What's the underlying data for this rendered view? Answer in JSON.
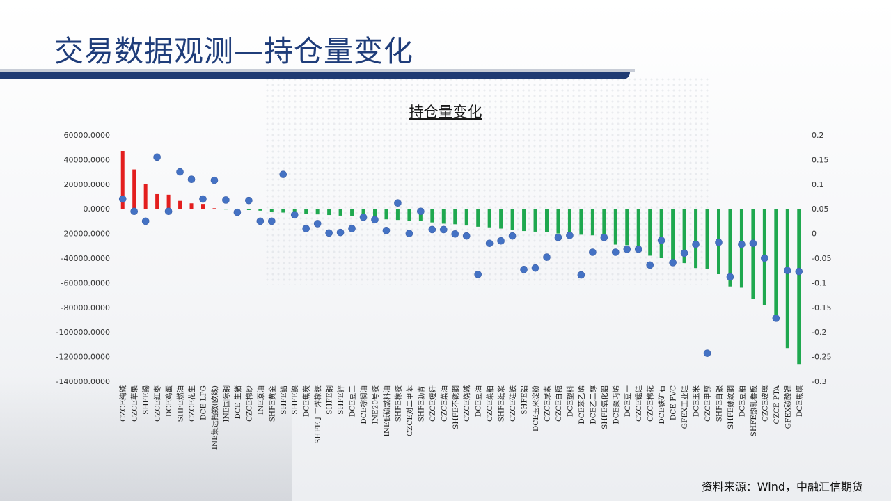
{
  "slide": {
    "title": "交易数据观测—持仓量变化",
    "source": "资料来源：Wind，中融汇信期货"
  },
  "colors": {
    "title": "#1f3d7a",
    "bar_positive": "#e31e1e",
    "bar_negative": "#1fa84f",
    "dot": "#4472c4"
  },
  "chart_data": {
    "type": "bar",
    "title": "持仓量变化",
    "left_axis": {
      "min": -140000,
      "max": 60000,
      "ticks": [
        60000,
        40000,
        20000,
        0,
        -20000,
        -40000,
        -60000,
        -80000,
        -100000,
        -120000,
        -140000
      ],
      "tick_labels": [
        "60000.0000",
        "40000.0000",
        "20000.0000",
        "0.0000",
        "-20000.0000",
        "-40000.0000",
        "-60000.0000",
        "-80000.0000",
        "-100000.0000",
        "-120000.0000",
        "-140000.0000"
      ]
    },
    "right_axis": {
      "min": -0.3,
      "max": 0.2,
      "ticks": [
        0.2,
        0.15,
        0.1,
        0.05,
        0,
        -0.05,
        -0.1,
        -0.15,
        -0.2,
        -0.25,
        -0.3
      ],
      "tick_labels": [
        "0.2",
        "0.15",
        "0.1",
        "0.05",
        "0",
        "-0.05",
        "-0.1",
        "-0.15",
        "-0.2",
        "-0.25",
        "-0.3"
      ]
    },
    "categories": [
      "CZCE纯碱",
      "CZCE苹果",
      "SHFE锡",
      "CZCE红枣",
      "DCE鸡蛋",
      "SHFE燃油",
      "CZCE花生",
      "DCE LPG",
      "INE集运指数(欧线)",
      "INE国际铜",
      "DCE 生猪",
      "CZCE棉纱",
      "INE原油",
      "SHFE黄金",
      "SHFE铅",
      "SHFE镍",
      "DCE焦炭",
      "SHFE丁二烯橡胶",
      "SHFE铜",
      "SHFE锌",
      "DCE豆二",
      "DCE棕榈油",
      "INE20号胶",
      "INE低硫燃料油",
      "SHFE橡胶",
      "CZCE对二甲苯",
      "SHFE沥青",
      "CZCE短纤",
      "CZCE菜油",
      "SHFE不锈钢",
      "CZCE烧碱",
      "DCE豆油",
      "CZCE菜粕",
      "SHFE纸浆",
      "CZCE硅铁",
      "SHFE铝",
      "DCE玉米淀粉",
      "CZCE尿素",
      "CZCE白糖",
      "DCE塑料",
      "DCE苯乙烯",
      "DCE乙二醇",
      "SHFE氧化铝",
      "DCE聚丙烯",
      "DCE豆一",
      "CZCE锰硅",
      "CZCE棉花",
      "DCE铁矿石",
      "DCE PVC",
      "GFEX工业硅",
      "DCE玉米",
      "CZCE甲醇",
      "SHFE白银",
      "SHFE螺纹钢",
      "DCE豆粕",
      "SHFE热轧卷板",
      "CZCE玻璃",
      "CZCE PTA",
      "GFEX碳酸锂",
      "DCE焦煤"
    ],
    "series": [
      {
        "type": "bar",
        "values": [
          47000,
          32000,
          20000,
          12000,
          11500,
          6500,
          4500,
          4000,
          500,
          -300,
          -600,
          -1000,
          -1500,
          -2500,
          -3000,
          -3500,
          -4000,
          -4500,
          -5000,
          -5500,
          -6000,
          -7000,
          -7500,
          -8500,
          -9000,
          -9500,
          -10000,
          -11000,
          -12000,
          -12500,
          -13500,
          -14500,
          -15000,
          -16000,
          -17000,
          -18000,
          -18500,
          -19000,
          -20000,
          -20500,
          -21000,
          -21500,
          -24000,
          -29000,
          -29500,
          -33000,
          -38000,
          -40000,
          -41000,
          -44000,
          -48000,
          -49000,
          -53000,
          -63000,
          -64000,
          -73000,
          -78000,
          -86000,
          -113000,
          -126000
        ]
      },
      {
        "type": "scatter",
        "axis": "right",
        "values": [
          0.07,
          0.045,
          0.025,
          0.155,
          0.045,
          0.125,
          0.11,
          0.07,
          0.108,
          0.068,
          0.043,
          0.067,
          0.025,
          0.025,
          0.12,
          0.038,
          0.01,
          0.02,
          0.001,
          0.002,
          0.01,
          0.033,
          0.028,
          0.006,
          0.062,
          0,
          0.045,
          0.008,
          0.008,
          -0.001,
          -0.005,
          -0.083,
          -0.02,
          -0.015,
          -0.005,
          -0.073,
          -0.07,
          -0.048,
          -0.008,
          -0.004,
          -0.084,
          -0.038,
          -0.008,
          -0.038,
          -0.032,
          -0.032,
          -0.064,
          -0.014,
          -0.059,
          -0.04,
          -0.022,
          -0.243,
          -0.018,
          -0.088,
          -0.022,
          -0.02,
          -0.05,
          -0.172,
          -0.075,
          -0.077
        ]
      }
    ]
  }
}
